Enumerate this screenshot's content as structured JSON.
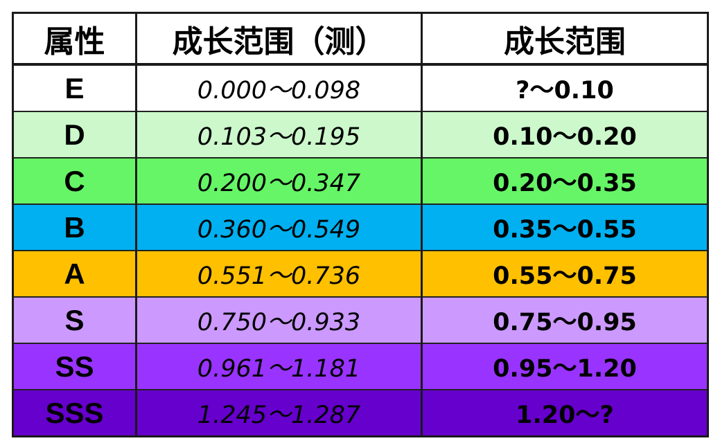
{
  "table": {
    "headers": {
      "attribute": "属性",
      "measured_range": "成长范围（测）",
      "growth_range": "成长范围"
    },
    "rows": [
      {
        "grade": "E",
        "measured": "0.000～0.098",
        "range": "?～0.10",
        "bg": "#ffffff"
      },
      {
        "grade": "D",
        "measured": "0.103～0.195",
        "range": "0.10～0.20",
        "bg": "#ccf8cc"
      },
      {
        "grade": "C",
        "measured": "0.200～0.347",
        "range": "0.20～0.35",
        "bg": "#66f566"
      },
      {
        "grade": "B",
        "measured": "0.360～0.549",
        "range": "0.35～0.55",
        "bg": "#00b0f0"
      },
      {
        "grade": "A",
        "measured": "0.551～0.736",
        "range": "0.55～0.75",
        "bg": "#ffc000"
      },
      {
        "grade": "S",
        "measured": "0.750～0.933",
        "range": "0.75～0.95",
        "bg": "#cc99ff"
      },
      {
        "grade": "SS",
        "measured": "0.961～1.181",
        "range": "0.95～1.20",
        "bg": "#9933ff"
      },
      {
        "grade": "SSS",
        "measured": "1.245～1.287",
        "range": "1.20～?",
        "bg": "#6600cc"
      }
    ]
  }
}
